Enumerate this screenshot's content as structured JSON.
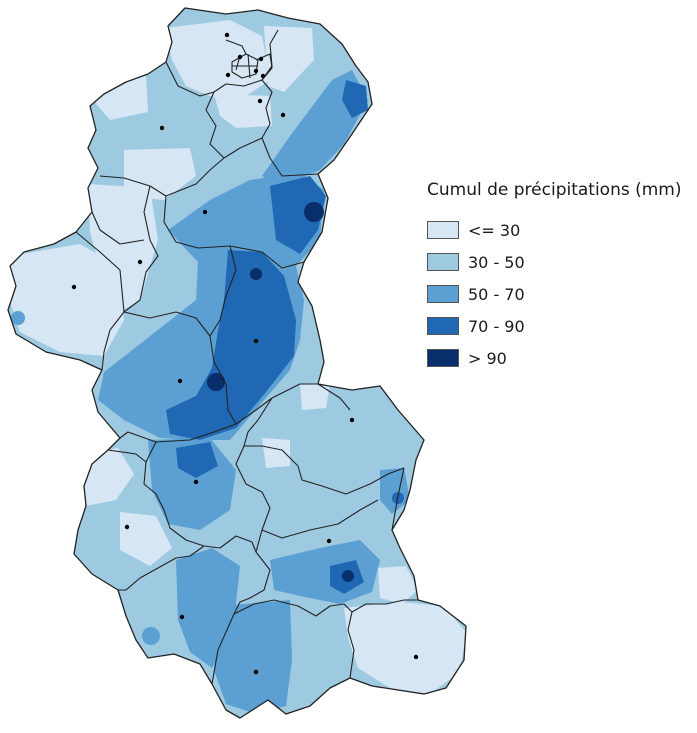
{
  "legend": {
    "title": "Cumul de précipitations (mm)",
    "classes": [
      {
        "label": "<= 30",
        "color": "#d6e6f4"
      },
      {
        "label": "30 - 50",
        "color": "#9ecae1"
      },
      {
        "label": "50 - 70",
        "color": "#5c9fd3"
      },
      {
        "label": "70 - 90",
        "color": "#2168b4"
      },
      {
        "label": "> 90",
        "color": "#082f6b"
      }
    ]
  },
  "colors": {
    "boundary": "#222222",
    "town_dot": "#000000",
    "background": "#ffffff"
  }
}
